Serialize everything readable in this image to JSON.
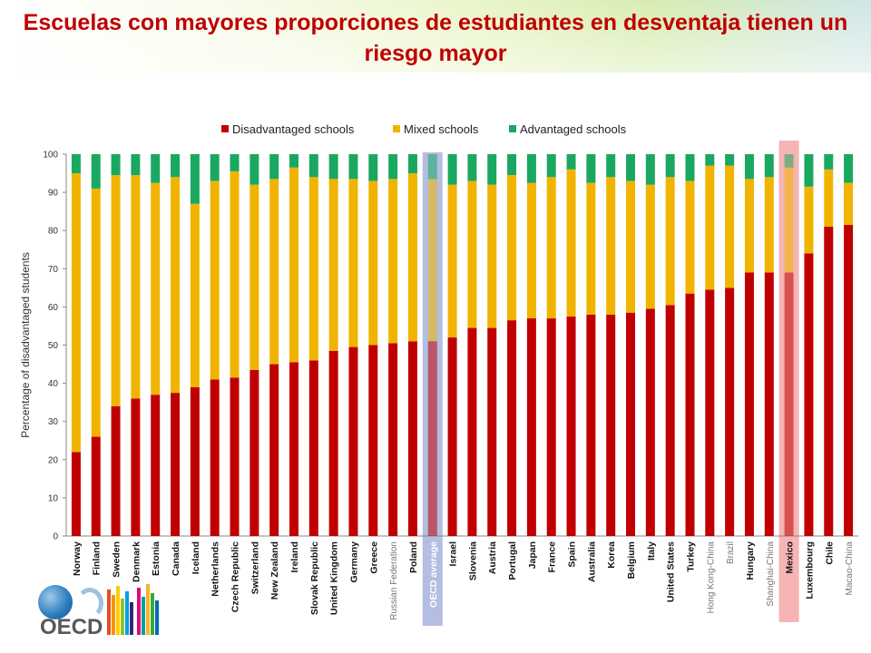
{
  "title": "Escuelas con mayores proporciones de estudiantes en desventaja tienen un riesgo mayor",
  "logo": {
    "text": "OECD",
    "number": "50"
  },
  "colors": {
    "title": "#c00000",
    "disadvantaged": "#c00000",
    "mixed": "#f0b400",
    "advantaged": "#1aa860",
    "oecd_highlight": "#9aa8d8",
    "mexico_highlight": "#f4a7a7"
  },
  "chart_data": {
    "type": "bar",
    "stacked": true,
    "ylabel": "Percentage of disadvantaged  students",
    "xlabel": "",
    "ylim": [
      0,
      100
    ],
    "yticks": [
      0,
      10,
      20,
      30,
      40,
      50,
      60,
      70,
      80,
      90,
      100
    ],
    "grid": false,
    "legend_position": "top",
    "categories": [
      "Norway",
      "Finland",
      "Sweden",
      "Denmark",
      "Estonia",
      "Canada",
      "Iceland",
      "Netherlands",
      "Czech Republic",
      "Switzerland",
      "New Zealand",
      "Ireland",
      "Slovak Republic",
      "United Kingdom",
      "Germany",
      "Greece",
      "Russian Federation",
      "Poland",
      "OECD average",
      "Israel",
      "Slovenia",
      "Austria",
      "Portugal",
      "Japan",
      "France",
      "Spain",
      "Australia",
      "Korea",
      "Belgium",
      "Italy",
      "United States",
      "Turkey",
      "Hong Kong-China",
      "Brazil",
      "Hungary",
      "Shanghai-China",
      "Mexico",
      "Luxembourg",
      "Chile",
      "Macao-China"
    ],
    "light_labels": [
      "Russian Federation",
      "Hong Kong-China",
      "Brazil",
      "Shanghai-China",
      "Macao-China"
    ],
    "highlighted": [
      {
        "category": "OECD average",
        "style": "oecd"
      },
      {
        "category": "Mexico",
        "style": "mexico"
      }
    ],
    "series": [
      {
        "name": "Disadvantaged schools",
        "values": [
          22,
          26,
          34,
          36,
          37,
          37.5,
          39,
          41,
          41.5,
          43.5,
          45,
          45.5,
          46,
          48.5,
          49.5,
          50,
          50.5,
          51,
          51,
          52,
          54.5,
          54.5,
          56.5,
          57,
          57,
          57.5,
          58,
          58,
          58.5,
          59.5,
          60.5,
          63.5,
          64.5,
          65,
          69,
          69,
          69,
          74,
          81,
          81.5
        ]
      },
      {
        "name": "Mixed schools",
        "values": [
          73,
          65,
          60.5,
          58.5,
          55.5,
          56.5,
          48,
          52,
          54,
          48.5,
          48.5,
          51,
          48,
          45,
          44,
          43,
          43,
          44,
          42.5,
          40,
          38.5,
          37.5,
          38,
          35.5,
          37,
          38.5,
          34.5,
          36,
          34.5,
          32.5,
          33.5,
          29.5,
          32.5,
          32,
          24.5,
          25,
          27.5,
          17.5,
          15,
          11
        ]
      },
      {
        "name": "Advantaged schools",
        "values": [
          5,
          9,
          5.5,
          5.5,
          7.5,
          6,
          13,
          7,
          4.5,
          8,
          6.5,
          3.5,
          6,
          6.5,
          6.5,
          7,
          6.5,
          5,
          6.5,
          8,
          7,
          8,
          5.5,
          7.5,
          6,
          4,
          7.5,
          6,
          7,
          8,
          6,
          7,
          3,
          3,
          6.5,
          6,
          3.5,
          8.5,
          4,
          7.5
        ]
      }
    ]
  }
}
